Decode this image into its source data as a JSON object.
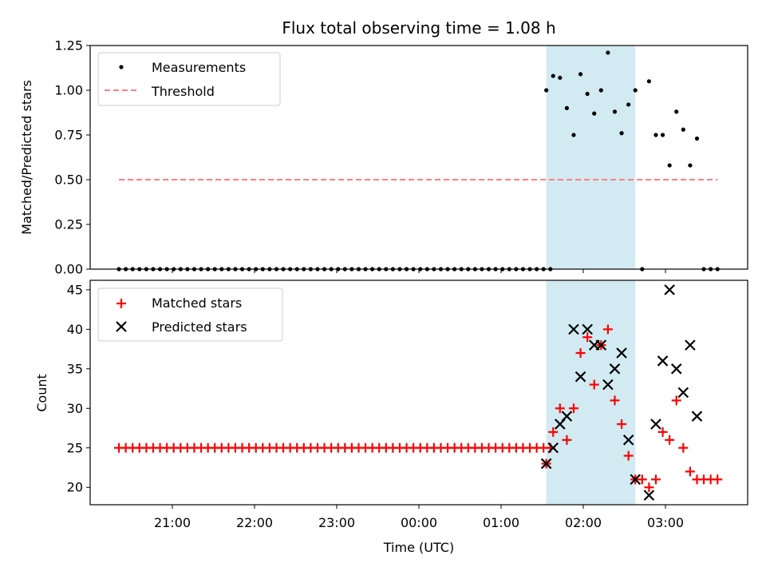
{
  "chart_data": [
    {
      "type": "scatter",
      "title": "Flux total observing time = 1.08 h",
      "xlabel": "",
      "ylabel": "Matched/Predicted stars",
      "ylim": [
        0,
        1.25
      ],
      "yticks": [
        "0.00",
        "0.25",
        "0.50",
        "0.75",
        "1.00",
        "1.25"
      ],
      "xlim_hours": [
        20.0,
        28.0
      ],
      "grid": false,
      "legend_placement": "top-left",
      "highlight_span": {
        "start": "01:33",
        "end": "02:38",
        "color": "#add8e6"
      },
      "series": [
        {
          "name": "Measurements",
          "marker": "dot",
          "color": "#000000",
          "x_start": "20:21",
          "x_step_minutes": 5,
          "zeros_count": 64,
          "x": [
            "01:33",
            "01:38",
            "01:43",
            "01:48",
            "01:53",
            "01:58",
            "02:03",
            "02:08",
            "02:13",
            "02:18",
            "02:23",
            "02:28",
            "02:33",
            "02:38",
            "02:43",
            "02:48",
            "02:53",
            "02:58",
            "03:03",
            "03:08",
            "03:13",
            "03:18",
            "03:23",
            "03:28",
            "03:33",
            "03:38"
          ],
          "y": [
            1.0,
            1.08,
            1.07,
            0.9,
            0.75,
            1.09,
            0.98,
            0.87,
            1.0,
            1.21,
            0.88,
            0.76,
            0.92,
            1.0,
            0.0,
            1.05,
            0.75,
            0.75,
            0.58,
            0.88,
            0.78,
            0.58,
            0.73,
            0.0,
            0.0,
            0.0
          ]
        },
        {
          "name": "Threshold",
          "marker": "dashed-line",
          "color": "#ff7f7f",
          "x_range": [
            "20:21",
            "03:38"
          ],
          "y": 0.5
        }
      ]
    },
    {
      "type": "scatter",
      "title": "",
      "xlabel": "Time (UTC)",
      "ylabel": "Count",
      "ylim": [
        18,
        46
      ],
      "yticks": [
        "20",
        "25",
        "30",
        "35",
        "40",
        "45"
      ],
      "xticks": [
        "21:00",
        "22:00",
        "23:00",
        "00:00",
        "01:00",
        "02:00",
        "03:00"
      ],
      "xlim_hours": [
        20.0,
        28.0
      ],
      "grid": false,
      "legend_placement": "top-left",
      "highlight_span": {
        "start": "01:33",
        "end": "02:38",
        "color": "#add8e6"
      },
      "series": [
        {
          "name": "Matched stars",
          "marker": "plus",
          "color": "#ff0000",
          "x_start": "20:21",
          "x_step_minutes": 5,
          "constant_count": 64,
          "constant_value": 25,
          "x": [
            "01:33",
            "01:38",
            "01:43",
            "01:48",
            "01:53",
            "01:58",
            "02:03",
            "02:08",
            "02:13",
            "02:18",
            "02:23",
            "02:28",
            "02:33",
            "02:38",
            "02:43",
            "02:48",
            "02:53",
            "02:58",
            "03:03",
            "03:08",
            "03:13",
            "03:18",
            "03:23",
            "03:28",
            "03:33",
            "03:38"
          ],
          "y": [
            23,
            27,
            30,
            26,
            30,
            37,
            39,
            33,
            38,
            40,
            31,
            28,
            24,
            21,
            21,
            20,
            21,
            27,
            26,
            31,
            25,
            22,
            21,
            21,
            21,
            21
          ]
        },
        {
          "name": "Predicted stars",
          "marker": "x",
          "color": "#000000",
          "x": [
            "01:33",
            "01:38",
            "01:43",
            "01:48",
            "01:53",
            "01:58",
            "02:03",
            "02:08",
            "02:13",
            "02:18",
            "02:23",
            "02:28",
            "02:33",
            "02:38",
            "02:48",
            "02:53",
            "02:58",
            "03:03",
            "03:08",
            "03:13",
            "03:18",
            "03:23"
          ],
          "y": [
            23,
            25,
            28,
            29,
            40,
            34,
            40,
            38,
            38,
            33,
            35,
            37,
            26,
            21,
            19,
            28,
            36,
            45,
            35,
            32,
            38,
            29
          ]
        }
      ]
    }
  ]
}
